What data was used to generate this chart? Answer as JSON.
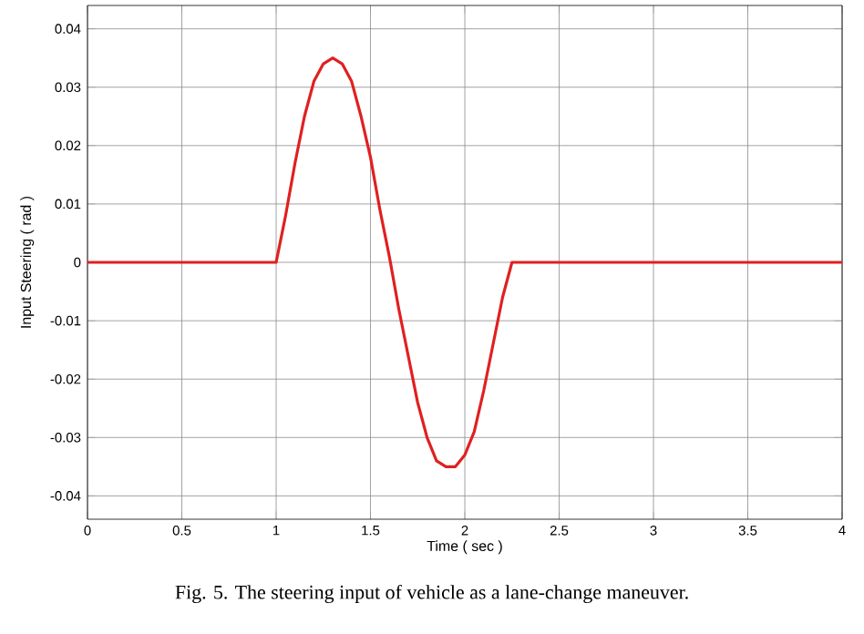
{
  "chart_data": {
    "type": "line",
    "xlabel": "Time ( sec )",
    "ylabel": "Input Steering ( rad )",
    "annotations": [
      "Fig. 5. The steering input of vehicle as a lane-change maneuver."
    ],
    "xlim": [
      0,
      4
    ],
    "xticks": [
      0,
      0.5,
      1,
      1.5,
      2,
      2.5,
      3,
      3.5,
      4
    ],
    "ylim": [
      -0.044,
      0.044
    ],
    "yticks": [
      -0.04,
      -0.03,
      -0.02,
      -0.01,
      0,
      0.01,
      0.02,
      0.03,
      0.04
    ],
    "grid": true,
    "series": [
      {
        "color": "#e02020",
        "x": [
          0,
          1,
          1.05,
          1.1,
          1.15,
          1.2,
          1.25,
          1.3,
          1.35,
          1.4,
          1.45,
          1.5,
          1.55,
          1.6,
          1.65,
          1.7,
          1.75,
          1.8,
          1.85,
          1.9,
          1.95,
          2.0,
          2.05,
          2.1,
          2.15,
          2.2,
          2.25,
          4
        ],
        "values": [
          0,
          0,
          0.008,
          0.017,
          0.025,
          0.031,
          0.034,
          0.035,
          0.034,
          0.031,
          0.025,
          0.018,
          0.009,
          0.001,
          -0.008,
          -0.016,
          -0.024,
          -0.03,
          -0.034,
          -0.035,
          -0.035,
          -0.033,
          -0.029,
          -0.022,
          -0.014,
          -0.006,
          0,
          0
        ]
      }
    ]
  }
}
